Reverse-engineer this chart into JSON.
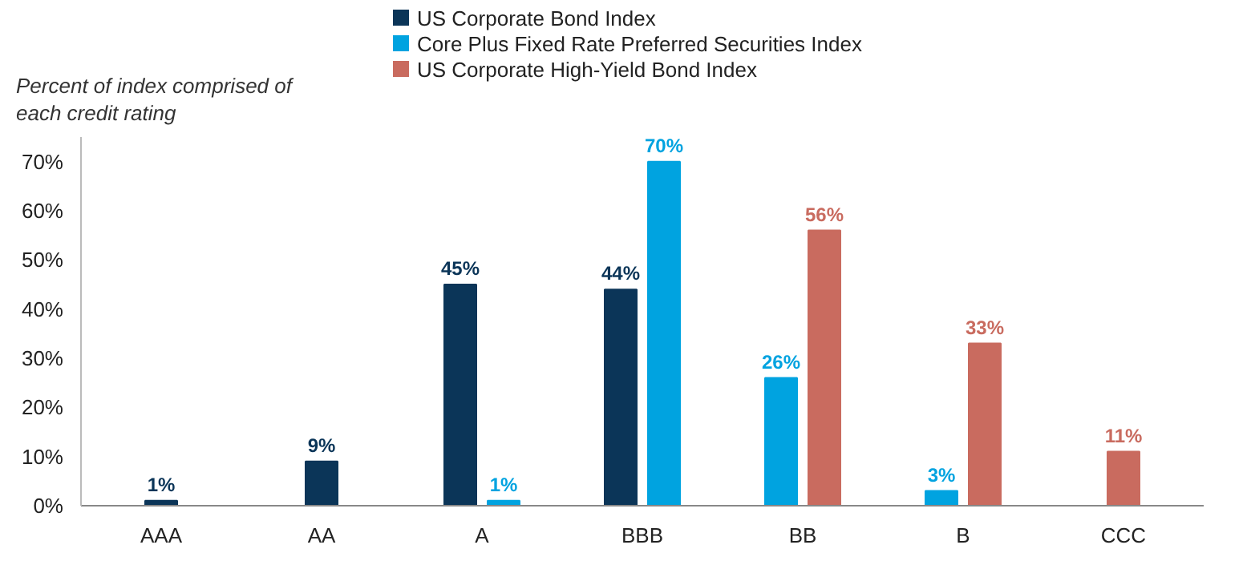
{
  "chart_data": {
    "type": "bar",
    "ylabel": "Percent of index comprised of each credit rating",
    "categories": [
      "AAA",
      "AA",
      "A",
      "BBB",
      "BB",
      "B",
      "CCC"
    ],
    "series": [
      {
        "name": "US Corporate Bond Index",
        "color": "#0b3558",
        "values": [
          1,
          9,
          45,
          44,
          null,
          null,
          null
        ],
        "value_labels": [
          "1%",
          "9%",
          "45%",
          "44%",
          null,
          null,
          null
        ]
      },
      {
        "name": "Core Plus Fixed Rate Preferred Securities Index",
        "color": "#00a3e0",
        "values": [
          null,
          null,
          1,
          70,
          26,
          3,
          null
        ],
        "value_labels": [
          null,
          null,
          "1%",
          "70%",
          "26%",
          "3%",
          null
        ]
      },
      {
        "name": "US Corporate High-Yield Bond Index",
        "color": "#c96b5f",
        "values": [
          null,
          null,
          null,
          null,
          56,
          33,
          11
        ],
        "value_labels": [
          null,
          null,
          null,
          null,
          "56%",
          "33%",
          "11%"
        ]
      }
    ],
    "ylim": [
      0,
      75
    ],
    "yticks": [
      {
        "value": 0,
        "label": "0%"
      },
      {
        "value": 10,
        "label": "10%"
      },
      {
        "value": 20,
        "label": "20%"
      },
      {
        "value": 30,
        "label": "30%"
      },
      {
        "value": 40,
        "label": "40%"
      },
      {
        "value": 50,
        "label": "50%"
      },
      {
        "value": 60,
        "label": "60%"
      },
      {
        "value": 70,
        "label": "70%"
      }
    ],
    "grid": false,
    "legend": "top"
  }
}
